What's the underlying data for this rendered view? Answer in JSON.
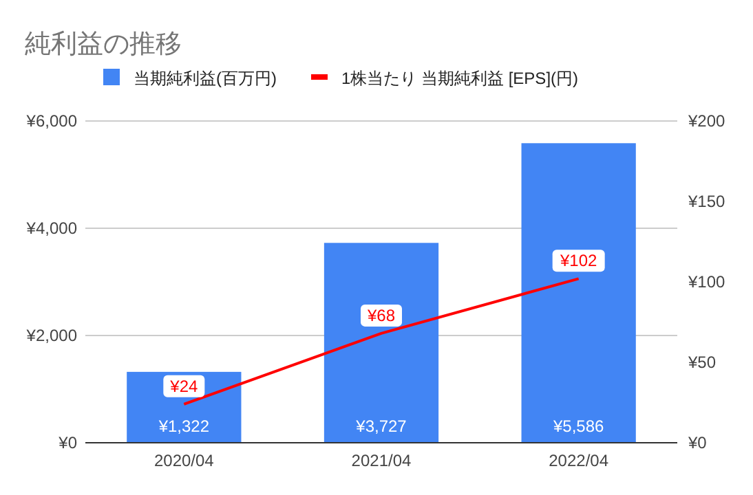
{
  "chart_data": {
    "type": "bar",
    "title": "純利益の推移",
    "categories": [
      "2020/04",
      "2021/04",
      "2022/04"
    ],
    "series": [
      {
        "name": "当期純利益(百万円)",
        "color": "#4285f4",
        "values": [
          1322,
          3727,
          5586
        ],
        "value_labels": [
          "¥1,322",
          "¥3,727",
          "¥5,586"
        ]
      },
      {
        "name": "1株当たり 当期純利益 [EPS](円)",
        "type": "line",
        "axis": "y2",
        "color": "#ff0000",
        "values": [
          24,
          68,
          102
        ],
        "value_labels": [
          "¥24",
          "¥68",
          "¥102"
        ]
      }
    ],
    "ylim": [
      0,
      6000
    ],
    "yticks": [
      {
        "value": 0,
        "label": "¥0"
      },
      {
        "value": 2000,
        "label": "¥2,000"
      },
      {
        "value": 4000,
        "label": "¥4,000"
      },
      {
        "value": 6000,
        "label": "¥6,000"
      }
    ],
    "y2lim": [
      0,
      200
    ],
    "y2ticks": [
      {
        "value": 0,
        "label": "¥0"
      },
      {
        "value": 50,
        "label": "¥50"
      },
      {
        "value": 100,
        "label": "¥100"
      },
      {
        "value": 150,
        "label": "¥150"
      },
      {
        "value": 200,
        "label": "¥200"
      }
    ],
    "grid": "y",
    "legend": "top",
    "line_style": "solid"
  }
}
